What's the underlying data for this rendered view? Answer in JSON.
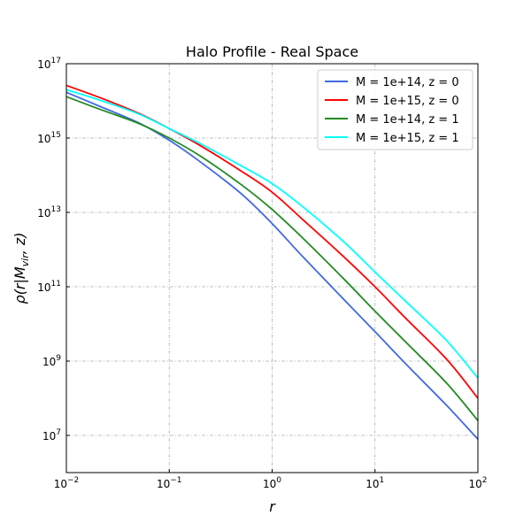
{
  "chart_data": {
    "type": "line",
    "title": "Halo Profile - Real Space",
    "xlabel": "r",
    "ylabel": "ρ(r|M_vir, z)",
    "xscale": "log",
    "yscale": "log",
    "xlim": [
      0.01,
      100
    ],
    "ylim": [
      1000000,
      100000000000000000
    ],
    "grid": true,
    "legend_position": "top-right",
    "x_ticks": [
      {
        "value": 0.01,
        "base": "10",
        "exp": "−2"
      },
      {
        "value": 0.1,
        "base": "10",
        "exp": "−1"
      },
      {
        "value": 1,
        "base": "10",
        "exp": "0"
      },
      {
        "value": 10,
        "base": "10",
        "exp": "1"
      },
      {
        "value": 100,
        "base": "10",
        "exp": "2"
      }
    ],
    "y_ticks": [
      {
        "value": 10000000,
        "base": "10",
        "exp": "7"
      },
      {
        "value": 1000000000,
        "base": "10",
        "exp": "9"
      },
      {
        "value": 100000000000,
        "base": "10",
        "exp": "11"
      },
      {
        "value": 10000000000000,
        "base": "10",
        "exp": "13"
      },
      {
        "value": 1000000000000000,
        "base": "10",
        "exp": "15"
      },
      {
        "value": 100000000000000000,
        "base": "10",
        "exp": "17"
      }
    ],
    "x": [
      0.01,
      0.02,
      0.05,
      0.1,
      0.2,
      0.5,
      1,
      2,
      5,
      10,
      20,
      50,
      100
    ],
    "series": [
      {
        "name": "M = 1e+14, z = 0",
        "color": "#4169e1",
        "values": [
          1.7e+16,
          7600000000000000.0,
          2600000000000000.0,
          870000000000000.0,
          230000000000000.0,
          32000000000000.0,
          5000000000000.0,
          630000000000.0,
          45000000000.0,
          6200000000.0,
          830000000.0,
          63000000.0,
          7900000.0
        ]
      },
      {
        "name": "M = 1e+15, z = 0",
        "color": "#ff0000",
        "values": [
          2.6e+16,
          1.3e+16,
          4700000000000000.0,
          1800000000000000.0,
          630000000000000.0,
          130000000000000.0,
          35000000000000.0,
          6300000000000.0,
          630000000000.0,
          100000000000.0,
          14000000000.0,
          1100000000.0,
          100000000.0
        ]
      },
      {
        "name": "M = 1e+14, z = 1",
        "color": "#228b22",
        "values": [
          1.3e+16,
          6300000000000000.0,
          2500000000000000.0,
          1000000000000000.0,
          330000000000000.0,
          56000000000000.0,
          12000000000000.0,
          2000000000000.0,
          160000000000.0,
          22000000000.0,
          3200000000.0,
          250000000.0,
          25000000.0
        ]
      },
      {
        "name": "M = 1e+15, z = 1",
        "color": "#00ffff",
        "values": [
          2e+16,
          1.1e+16,
          4500000000000000.0,
          1800000000000000.0,
          710000000000000.0,
          180000000000000.0,
          60000000000000.0,
          14000000000000.0,
          1600000000000.0,
          250000000000.0,
          40000000000.0,
          3500000000.0,
          350000000.0
        ]
      }
    ]
  }
}
